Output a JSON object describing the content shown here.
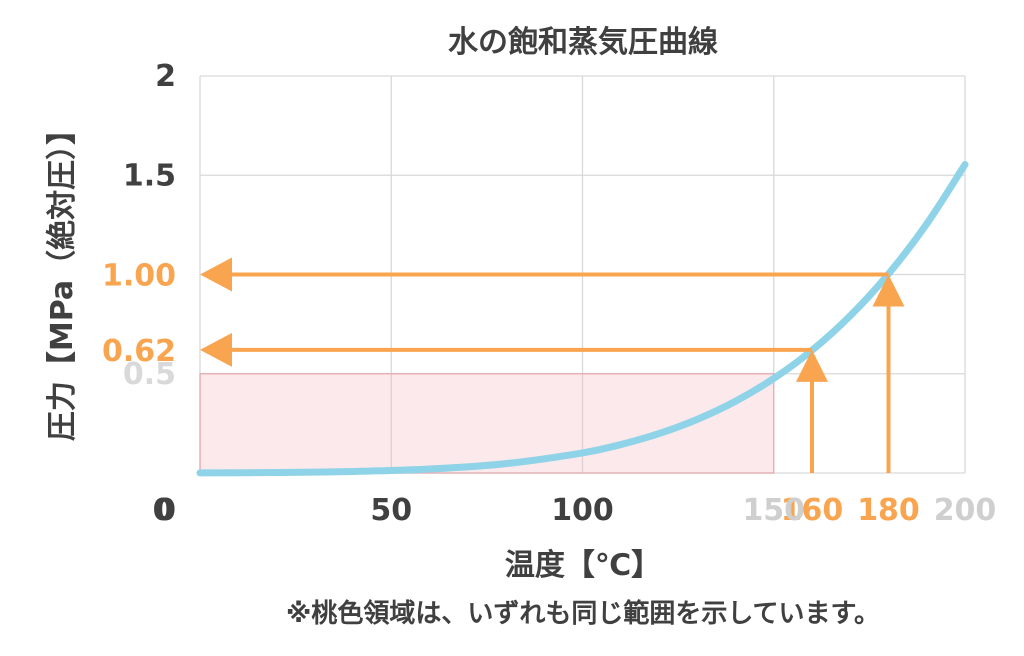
{
  "chart_data": {
    "type": "line",
    "title": "水の飽和蒸気圧曲線",
    "xlabel": "温度【℃】",
    "ylabel": "圧力【MPa（絶対圧）】",
    "xlim": [
      0,
      200
    ],
    "ylim": [
      0,
      2
    ],
    "grid": true,
    "x_ticks": [
      {
        "value": 0,
        "label": "0"
      },
      {
        "value": 50,
        "label": "50"
      },
      {
        "value": 100,
        "label": "100"
      },
      {
        "value": 150,
        "label": "150"
      },
      {
        "value": 200,
        "label": "200"
      }
    ],
    "y_ticks": [
      {
        "value": 0,
        "label": "0"
      },
      {
        "value": 0.5,
        "label": "0.5"
      },
      {
        "value": 1.5,
        "label": "1.5"
      },
      {
        "value": 2,
        "label": "2"
      }
    ],
    "series": [
      {
        "color": "#8fd3e8",
        "x": [
          0,
          20,
          40,
          60,
          80,
          100,
          110,
          120,
          130,
          140,
          150,
          160,
          170,
          180,
          190,
          200
        ],
        "y": [
          0.0006,
          0.0023,
          0.0074,
          0.0199,
          0.0474,
          0.1013,
          0.1433,
          0.1985,
          0.2701,
          0.3614,
          0.4762,
          0.618,
          0.792,
          1.003,
          1.255,
          1.554
        ]
      }
    ],
    "highlight_region": {
      "x": [
        0,
        150
      ],
      "y": [
        0,
        0.5
      ],
      "color": "#f5b5bd"
    },
    "annotations": [
      {
        "x": 160,
        "y": 0.62,
        "x_label": "160",
        "y_label": "0.62",
        "color": "#f9a550"
      },
      {
        "x": 180,
        "y": 1.0,
        "x_label": "180",
        "y_label": "1.00",
        "color": "#f9a550"
      }
    ],
    "note": "※桃色領域は、いずれも同じ範囲を示しています。"
  }
}
